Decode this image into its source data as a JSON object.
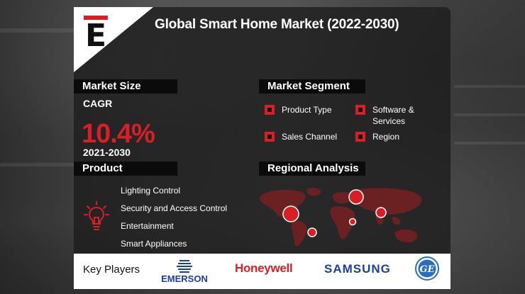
{
  "title": "Global Smart Home Market (2022-2030)",
  "logo": {
    "letter": "E",
    "icon": "e-logo-icon"
  },
  "market_size": {
    "heading": "Market Size",
    "cagr_label": "CAGR",
    "cagr_value": "10.4%",
    "period": "2021-2030"
  },
  "market_segment": {
    "heading": "Market Segment",
    "items": [
      "Product Type",
      "Software & Services",
      "Sales Channel",
      "Region"
    ]
  },
  "product": {
    "heading": "Product",
    "icon": "lightbulb-icon",
    "items": [
      "Lighting Control",
      "Security and Access Control",
      "Entertainment",
      "Smart Appliances"
    ]
  },
  "regional_analysis": {
    "heading": "Regional Analysis",
    "icon": "world-map-icon"
  },
  "key_players": {
    "label": "Key Players",
    "brands": [
      "EMERSON",
      "Honeywell",
      "SAMSUNG",
      "GE"
    ]
  },
  "colors": {
    "accent": "#d71f26",
    "bar": "#0b0b0b",
    "card": "#1c1c1c",
    "samsung_blue": "#1b3f9e",
    "ge_blue": "#2a6ebd"
  }
}
